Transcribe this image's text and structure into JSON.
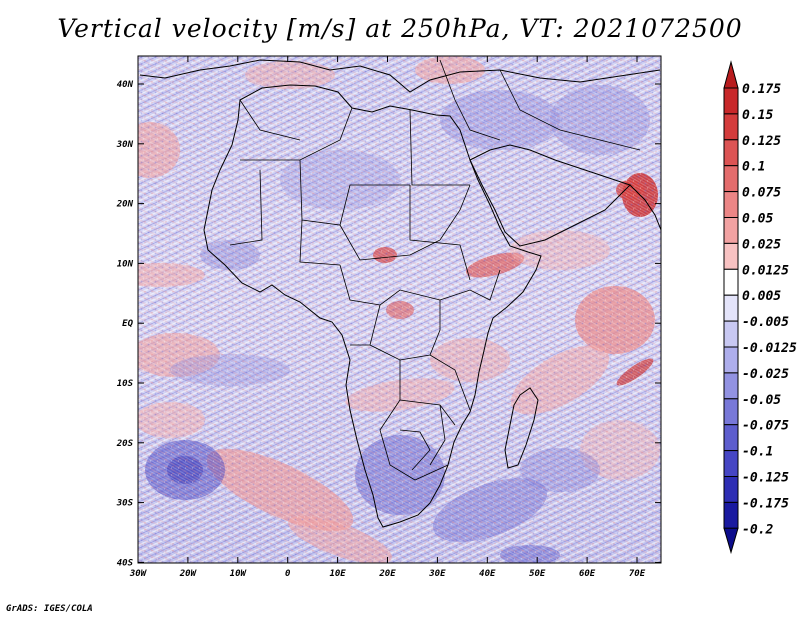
{
  "title": "Vertical velocity [m/s] at 250hPa, VT: 2021072500",
  "credit": "GrADS: IGES/COLA",
  "map": {
    "lat_ticks": [
      "40N",
      "30N",
      "20N",
      "10N",
      "EQ",
      "10S",
      "20S",
      "30S",
      "40S"
    ],
    "lon_ticks": [
      "30W",
      "20W",
      "10W",
      "0",
      "10E",
      "20E",
      "30E",
      "40E",
      "50E",
      "60E",
      "70E"
    ],
    "extent": {
      "lon": [
        -30,
        75
      ],
      "lat": [
        -40,
        44
      ]
    }
  },
  "colorbar": {
    "labels": [
      "0.175",
      "0.15",
      "0.125",
      "0.1",
      "0.075",
      "0.05",
      "0.025",
      "0.0125",
      "0.005",
      "-0.005",
      "-0.0125",
      "-0.025",
      "-0.05",
      "-0.075",
      "-0.1",
      "-0.125",
      "-0.175",
      "-0.2"
    ],
    "colors": [
      "#b81c1e",
      "#c8282a",
      "#d43c3c",
      "#dc5454",
      "#e46c6c",
      "#ec8686",
      "#f2a2a2",
      "#f8c2c2",
      "#ffffff",
      "#e4e4fa",
      "#c8c8f2",
      "#aeaeec",
      "#9292e2",
      "#7878d8",
      "#5e5ece",
      "#4646c4",
      "#2e2eb4",
      "#1a1aa0",
      "#0c0c8c"
    ]
  }
}
